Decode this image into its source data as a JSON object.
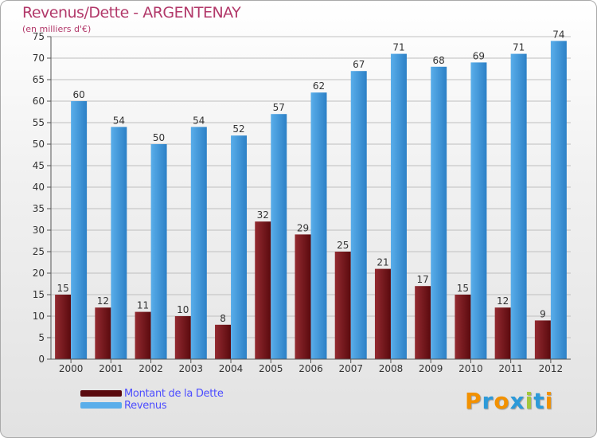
{
  "title": "Revenus/Dette - ARGENTENAY",
  "subtitle": "(en milliers d'€)",
  "brand": {
    "text": "Proxiti",
    "letter_colors": [
      "#f29100",
      "#2c9ad9",
      "#f29100",
      "#2c9ad9",
      "#a3c73a",
      "#2c9ad9",
      "#f29100"
    ]
  },
  "colors": {
    "dette_dark": "#5a0a0e",
    "dette_light": "#932a30",
    "revenus_dark": "#2c80c6",
    "revenus_light": "#5aaeea",
    "grid": "#bfbfbf",
    "axis": "#555555"
  },
  "chart_data": {
    "type": "bar",
    "title": "Revenus/Dette - ARGENTENAY",
    "ylabel": "(en milliers d'€)",
    "xlabel": "",
    "categories": [
      "2000",
      "2001",
      "2002",
      "2003",
      "2004",
      "2005",
      "2006",
      "2007",
      "2008",
      "2009",
      "2010",
      "2011",
      "2012"
    ],
    "series": [
      {
        "name": "Montant de la Dette",
        "values": [
          15,
          12,
          11,
          10,
          8,
          32,
          29,
          25,
          21,
          17,
          15,
          12,
          9
        ]
      },
      {
        "name": "Revenus",
        "values": [
          60,
          54,
          50,
          54,
          52,
          57,
          62,
          67,
          71,
          68,
          69,
          71,
          74
        ]
      }
    ],
    "ylim": [
      0,
      75
    ],
    "ytick_step": 5,
    "yticks": [
      "0",
      "5",
      "10",
      "15",
      "20",
      "25",
      "30",
      "35",
      "40",
      "45",
      "50",
      "55",
      "60",
      "65",
      "70",
      "75"
    ],
    "grid": true,
    "legend": "bottom-left"
  }
}
